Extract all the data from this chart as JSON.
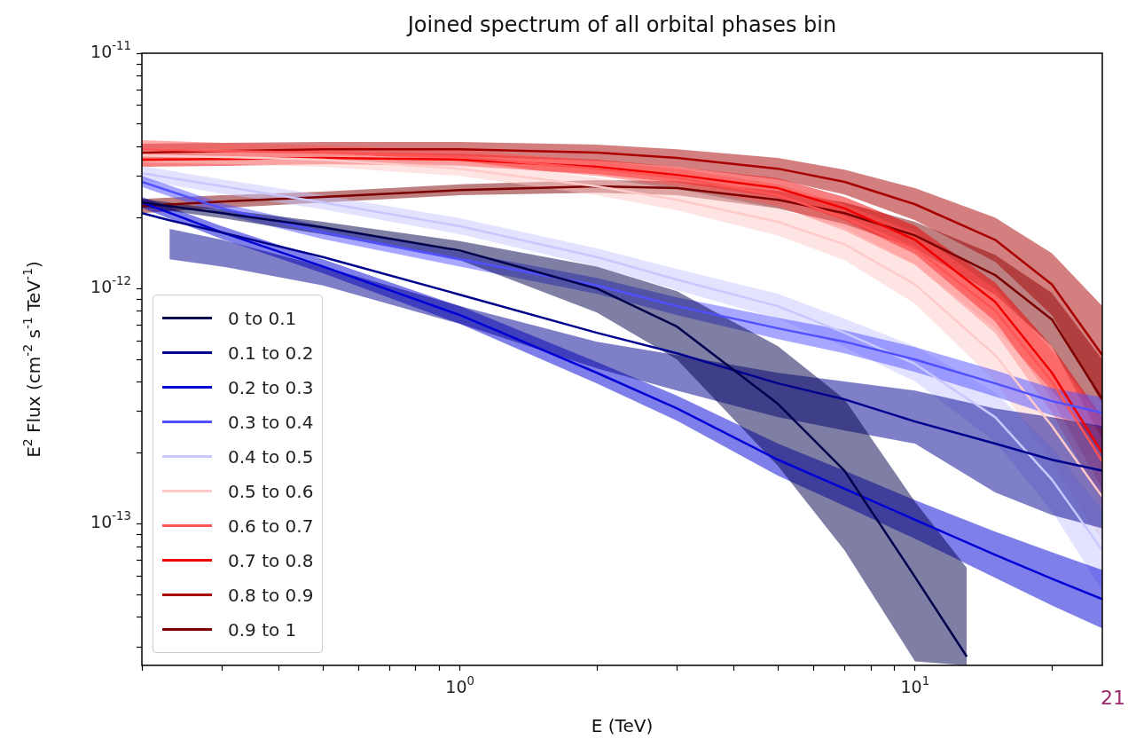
{
  "chart_data": {
    "type": "line",
    "title": "Joined spectrum of all orbital phases bin",
    "xlabel": "E (TeV)",
    "ylabel": "E$^{2}$ Flux (cm$^{-2}$ s$^{-1}$ TeV$^{-1}$)",
    "annotations": [
      "21"
    ],
    "log": "xy",
    "grid": false,
    "legend": "bottom left",
    "marker": "none",
    "line_style": "solid",
    "xlim": [
      0.2,
      25.8
    ],
    "ylim": [
      2.5e-14,
      1e-11
    ],
    "xticks": [
      {
        "value": 0.2,
        "label": null
      },
      {
        "value": 0.3,
        "label": null
      },
      {
        "value": 0.4,
        "label": null
      },
      {
        "value": 0.5,
        "label": null
      },
      {
        "value": 0.6,
        "label": null
      },
      {
        "value": 0.7,
        "label": null
      },
      {
        "value": 0.8,
        "label": null
      },
      {
        "value": 0.9,
        "label": null
      },
      {
        "value": 1,
        "label": "10$^{0}$"
      },
      {
        "value": 2,
        "label": null
      },
      {
        "value": 3,
        "label": null
      },
      {
        "value": 4,
        "label": null
      },
      {
        "value": 5,
        "label": null
      },
      {
        "value": 6,
        "label": null
      },
      {
        "value": 7,
        "label": null
      },
      {
        "value": 8,
        "label": null
      },
      {
        "value": 9,
        "label": null
      },
      {
        "value": 10,
        "label": "10$^{1}$"
      },
      {
        "value": 20,
        "label": null
      }
    ],
    "yticks": [
      {
        "value": 3e-14,
        "label": null
      },
      {
        "value": 4e-14,
        "label": null
      },
      {
        "value": 5e-14,
        "label": null
      },
      {
        "value": 6e-14,
        "label": null
      },
      {
        "value": 7e-14,
        "label": null
      },
      {
        "value": 8e-14,
        "label": null
      },
      {
        "value": 9e-14,
        "label": null
      },
      {
        "value": 1e-13,
        "label": "10$^{-13}$"
      },
      {
        "value": 2e-13,
        "label": null
      },
      {
        "value": 3e-13,
        "label": null
      },
      {
        "value": 4e-13,
        "label": null
      },
      {
        "value": 5e-13,
        "label": null
      },
      {
        "value": 6e-13,
        "label": null
      },
      {
        "value": 7e-13,
        "label": null
      },
      {
        "value": 8e-13,
        "label": null
      },
      {
        "value": 9e-13,
        "label": null
      },
      {
        "value": 1e-12,
        "label": "10$^{-12}$"
      },
      {
        "value": 2e-12,
        "label": null
      },
      {
        "value": 3e-12,
        "label": null
      },
      {
        "value": 4e-12,
        "label": null
      },
      {
        "value": 5e-12,
        "label": null
      },
      {
        "value": 6e-12,
        "label": null
      },
      {
        "value": 7e-12,
        "label": null
      },
      {
        "value": 8e-12,
        "label": null
      },
      {
        "value": 9e-12,
        "label": null
      },
      {
        "value": 1e-11,
        "label": "10$^{-11}$"
      }
    ],
    "series": [
      {
        "name": "0 to 0.1",
        "color": "#00004c",
        "x": [
          0.2,
          0.3,
          0.5,
          1,
          2,
          3,
          5,
          7,
          10,
          13
        ],
        "values": [
          2.32e-12,
          2.09e-12,
          1.82e-12,
          1.45e-12,
          1e-12,
          6.88e-13,
          3.23e-13,
          1.68e-13,
          5.94e-14,
          2.72e-14
        ],
        "upper": [
          2.4e-12,
          2.17e-12,
          1.92e-12,
          1.59e-12,
          1.24e-12,
          9.74e-13,
          5.68e-13,
          3.38e-13,
          1.24e-13,
          6.48e-14
        ],
        "lower": [
          2.22e-12,
          1.99e-12,
          1.7e-12,
          1.32e-12,
          7.91e-13,
          4.99e-13,
          1.76e-13,
          7.71e-14,
          2.6e-14,
          2.5e-14
        ]
      },
      {
        "name": "0.1 to 0.2",
        "color": "#00008f",
        "x": [
          0.2,
          0.23,
          0.3,
          0.5,
          1,
          2,
          3,
          5,
          7,
          10,
          15,
          20,
          25.8
        ],
        "values": [
          2.09e-12,
          1.95e-12,
          1.73e-12,
          1.36e-12,
          9.41e-13,
          6.48e-13,
          5.3e-13,
          3.95e-13,
          3.38e-13,
          2.72e-13,
          2.19e-13,
          1.87e-13,
          1.68e-13
        ],
        "upper": [
          null,
          1.79e-12,
          1.61e-12,
          1.24e-12,
          8.41e-13,
          5.94e-13,
          5.21e-13,
          4.38e-13,
          4.02e-13,
          3.68e-13,
          3.09e-13,
          2.84e-13,
          2.6e-13
        ],
        "lower": [
          null,
          1.33e-12,
          1.24e-12,
          1.03e-12,
          7.07e-13,
          4.57e-13,
          3.68e-13,
          2.84e-13,
          2.49e-13,
          2.19e-13,
          1.36e-13,
          1.09e-13,
          9.57e-14
        ]
      },
      {
        "name": "0.2 to 0.3",
        "color": "#0000d6",
        "x": [
          0.2,
          0.3,
          0.5,
          1,
          2,
          3,
          5,
          7,
          10,
          15,
          20,
          25.8
        ],
        "values": [
          2.32e-12,
          1.73e-12,
          1.24e-12,
          7.71e-13,
          4.38e-13,
          3.09e-13,
          1.87e-13,
          1.41e-13,
          1.04e-13,
          7.38e-14,
          5.84e-14,
          4.78e-14
        ],
        "upper": [
          2.45e-12,
          1.84e-12,
          1.33e-12,
          8.41e-13,
          4.87e-13,
          3.5e-13,
          2.19e-13,
          1.68e-13,
          1.26e-13,
          9.25e-14,
          7.57e-14,
          6.36e-14
        ],
        "lower": [
          2.2e-12,
          1.62e-12,
          1.16e-12,
          7.07e-13,
          3.95e-13,
          2.74e-13,
          1.6e-13,
          1.19e-13,
          8.63e-14,
          5.89e-14,
          4.49e-14,
          3.59e-14
        ]
      },
      {
        "name": "0.3 to 0.4",
        "color": "#5050ff",
        "x": [
          0.2,
          0.3,
          0.5,
          1,
          2,
          3,
          5,
          7,
          10,
          15,
          20,
          25.8
        ],
        "values": [
          2.84e-12,
          2.19e-12,
          1.73e-12,
          1.33e-12,
          1.03e-12,
          8.41e-13,
          6.77e-13,
          5.94e-13,
          4.99e-13,
          3.95e-13,
          3.32e-13,
          2.96e-13
        ],
        "upper": [
          3.01e-12,
          2.3e-12,
          1.84e-12,
          1.43e-12,
          1.11e-12,
          9.17e-13,
          7.51e-13,
          6.65e-13,
          5.63e-13,
          4.49e-13,
          3.77e-13,
          3.44e-13
        ],
        "lower": [
          2.7e-12,
          2.07e-12,
          1.62e-12,
          1.24e-12,
          9.49e-13,
          7.71e-13,
          6.09e-13,
          5.3e-13,
          4.42e-13,
          3.47e-13,
          2.89e-13,
          2.56e-13
        ]
      },
      {
        "name": "0.4 to 0.5",
        "color": "#c8c8ff",
        "x": [
          0.2,
          0.3,
          0.5,
          1,
          2,
          3,
          5,
          7,
          10,
          15,
          20,
          25.8
        ],
        "values": [
          3.09e-12,
          2.72e-12,
          2.32e-12,
          1.84e-12,
          1.36e-12,
          1.09e-12,
          8.41e-13,
          6.48e-13,
          4.78e-13,
          2.84e-13,
          1.54e-13,
          7.71e-14
        ],
        "upper": [
          3.32e-12,
          2.91e-12,
          2.49e-12,
          1.99e-12,
          1.48e-12,
          1.21e-12,
          9.49e-13,
          7.44e-13,
          5.68e-13,
          3.62e-13,
          2.11e-13,
          1.14e-13
        ],
        "lower": [
          2.89e-12,
          2.53e-12,
          2.17e-12,
          1.7e-12,
          1.24e-12,
          9.84e-13,
          7.44e-13,
          5.63e-13,
          4.02e-13,
          2.23e-13,
          1.13e-13,
          5.21e-14
        ]
      },
      {
        "name": "0.5 to 0.6",
        "color": "#ffcaca",
        "x": [
          0.2,
          0.3,
          0.5,
          1,
          2,
          3,
          5,
          7,
          10,
          15,
          20,
          25.8
        ],
        "values": [
          3.68e-12,
          3.62e-12,
          3.53e-12,
          3.23e-12,
          2.72e-12,
          2.38e-12,
          1.92e-12,
          1.54e-12,
          1.04e-12,
          5.21e-13,
          2.6e-13,
          1.3e-13
        ],
        "upper": [
          3.95e-12,
          3.88e-12,
          3.78e-12,
          3.49e-12,
          2.96e-12,
          2.65e-12,
          2.19e-12,
          1.81e-12,
          1.26e-12,
          6.77e-13,
          3.68e-13,
          2e-13
        ],
        "lower": [
          3.43e-12,
          3.38e-12,
          3.29e-12,
          3.01e-12,
          2.49e-12,
          2.15e-12,
          1.68e-12,
          1.32e-12,
          8.63e-13,
          4.02e-13,
          1.84e-13,
          8.41e-14
        ]
      },
      {
        "name": "0.6 to 0.7",
        "color": "#ff5454",
        "x": [
          0.2,
          0.3,
          0.5,
          1,
          2,
          3,
          5,
          7,
          10,
          15,
          20,
          25.8
        ],
        "values": [
          3.91e-12,
          3.84e-12,
          3.78e-12,
          3.62e-12,
          3.23e-12,
          2.96e-12,
          2.49e-12,
          2e-12,
          1.48e-12,
          8.05e-13,
          4.02e-13,
          1.84e-13
        ],
        "upper": [
          4.27e-12,
          4.16e-12,
          4.05e-12,
          3.88e-12,
          3.49e-12,
          3.23e-12,
          2.77e-12,
          2.28e-12,
          1.73e-12,
          1e-12,
          5.44e-13,
          2.72e-13
        ],
        "lower": [
          3.59e-12,
          3.55e-12,
          3.53e-12,
          3.38e-12,
          3.01e-12,
          2.72e-12,
          2.24e-12,
          1.76e-12,
          1.26e-12,
          6.48e-13,
          2.96e-13,
          1.24e-13
        ]
      },
      {
        "name": "0.7 to 0.8",
        "color": "#f00000",
        "x": [
          0.2,
          0.3,
          0.5,
          1,
          2,
          3,
          5,
          7,
          10,
          15,
          20,
          25.8
        ],
        "values": [
          3.53e-12,
          3.55e-12,
          3.59e-12,
          3.53e-12,
          3.29e-12,
          3.04e-12,
          2.67e-12,
          2.19e-12,
          1.61e-12,
          8.78e-13,
          4.38e-13,
          2e-13
        ],
        "upper": [
          3.78e-12,
          3.81e-12,
          3.81e-12,
          3.74e-12,
          3.53e-12,
          3.29e-12,
          2.94e-12,
          2.45e-12,
          1.85e-12,
          1.06e-12,
          5.68e-13,
          2.84e-13
        ],
        "lower": [
          3.29e-12,
          3.32e-12,
          3.38e-12,
          3.32e-12,
          3.06e-12,
          2.82e-12,
          2.43e-12,
          1.95e-12,
          1.4e-12,
          7.24e-13,
          3.38e-13,
          1.41e-13
        ]
      },
      {
        "name": "0.8 to 0.9",
        "color": "#a80000",
        "x": [
          0.2,
          0.3,
          0.5,
          1,
          2,
          3,
          5,
          7,
          10,
          15,
          20,
          25.8
        ],
        "values": [
          3.78e-12,
          3.84e-12,
          3.91e-12,
          3.91e-12,
          3.78e-12,
          3.59e-12,
          3.23e-12,
          2.84e-12,
          2.28e-12,
          1.61e-12,
          1.04e-12,
          5.21e-13
        ],
        "upper": [
          4.12e-12,
          4.16e-12,
          4.2e-12,
          4.2e-12,
          4.09e-12,
          3.91e-12,
          3.59e-12,
          3.2e-12,
          2.67e-12,
          2e-12,
          1.41e-12,
          8.41e-13
        ],
        "lower": [
          3.46e-12,
          3.55e-12,
          3.65e-12,
          3.65e-12,
          3.49e-12,
          3.29e-12,
          2.91e-12,
          2.51e-12,
          1.95e-12,
          1.3e-12,
          7.71e-13,
          3.23e-13
        ]
      },
      {
        "name": "0.9 to 1",
        "color": "#7c0000",
        "x": [
          0.2,
          0.3,
          0.5,
          1,
          2,
          3,
          5,
          7,
          10,
          15,
          20,
          25.8
        ],
        "values": [
          2.24e-12,
          2.34e-12,
          2.45e-12,
          2.62e-12,
          2.72e-12,
          2.67e-12,
          2.38e-12,
          2.09e-12,
          1.68e-12,
          1.14e-12,
          7.38e-13,
          3.38e-13
        ],
        "upper": [
          2.4e-12,
          2.49e-12,
          2.58e-12,
          2.77e-12,
          2.89e-12,
          2.86e-12,
          2.6e-12,
          2.32e-12,
          1.92e-12,
          1.39e-12,
          9.57e-13,
          4.99e-13
        ],
        "lower": [
          2.09e-12,
          2.2e-12,
          2.32e-12,
          2.49e-12,
          2.55e-12,
          2.49e-12,
          2.19e-12,
          1.88e-12,
          1.48e-12,
          9.41e-13,
          5.68e-13,
          2.28e-13
        ]
      }
    ]
  }
}
